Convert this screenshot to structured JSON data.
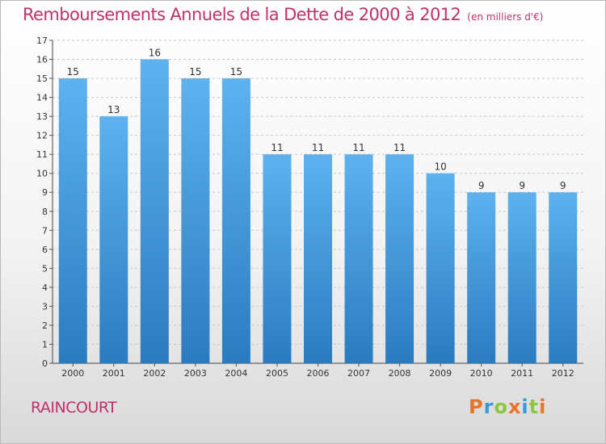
{
  "title": "Remboursements Annuels de la Dette de 2000 à 2012",
  "subtitle": "(en milliers d'€)",
  "place": "RAINCOURT",
  "logo": {
    "text": "Proxiti",
    "letters": [
      {
        "char": "P",
        "color": "#e8742b"
      },
      {
        "char": "r",
        "color": "#3a9ad9"
      },
      {
        "char": "o",
        "color": "#8dc63f"
      },
      {
        "char": "x",
        "color": "#e8742b"
      },
      {
        "char": "i",
        "color": "#3a9ad9"
      },
      {
        "char": "t",
        "color": "#8dc63f"
      },
      {
        "char": "i",
        "color": "#e8742b"
      }
    ]
  },
  "colors": {
    "title": "#c0306a",
    "bar_top": "#5eb2ef",
    "bar_bottom": "#2a7cc0",
    "grid": "#c8c8c8"
  },
  "chart_data": {
    "type": "bar",
    "categories": [
      "2000",
      "2001",
      "2002",
      "2003",
      "2004",
      "2005",
      "2006",
      "2007",
      "2008",
      "2009",
      "2010",
      "2011",
      "2012"
    ],
    "values": [
      15,
      13,
      16,
      15,
      15,
      11,
      11,
      11,
      11,
      10,
      9,
      9,
      9
    ],
    "title": "Remboursements Annuels de la Dette de 2000 à 2012",
    "xlabel": "",
    "ylabel": "",
    "ylim": [
      0,
      17
    ],
    "yticks": [
      0,
      1,
      2,
      3,
      4,
      5,
      6,
      7,
      8,
      9,
      10,
      11,
      12,
      13,
      14,
      15,
      16,
      17
    ],
    "grid": true,
    "data_labels": true
  }
}
